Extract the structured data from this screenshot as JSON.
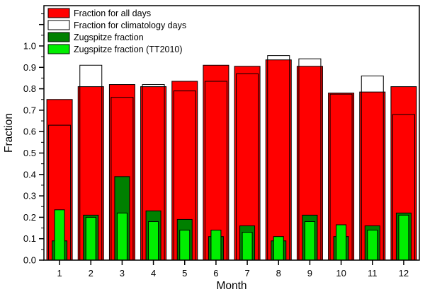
{
  "chart_data": {
    "type": "bar",
    "title": "",
    "xlabel": "Month",
    "ylabel": "Fraction",
    "grid": false,
    "legend_position": "top-left",
    "ylim": [
      0,
      1.19
    ],
    "yticks": [
      0.0,
      0.1,
      0.2,
      0.3,
      0.4,
      0.5,
      0.6,
      0.7,
      0.8,
      0.9,
      1.0,
      1.1
    ],
    "ytick_labels": [
      "0.0",
      "0.1",
      "0.2",
      "0.3",
      "0.4",
      "0.5",
      "0.6",
      "0.7",
      "0.8",
      "0.9",
      "1.0",
      ""
    ],
    "categories": [
      "1",
      "2",
      "3",
      "4",
      "5",
      "6",
      "7",
      "8",
      "9",
      "10",
      "11",
      "12"
    ],
    "series": [
      {
        "key": "all-days",
        "name": "Fraction for all days",
        "color": "#ff0000",
        "fill": true,
        "values": [
          0.75,
          0.81,
          0.82,
          0.81,
          0.835,
          0.91,
          0.905,
          0.935,
          0.905,
          0.78,
          0.785,
          0.81
        ]
      },
      {
        "key": "climatology-days",
        "name": "Fraction for climatology days",
        "color": "#ffffff",
        "fill": false,
        "values": [
          0.63,
          0.91,
          0.76,
          0.82,
          0.79,
          0.835,
          0.87,
          0.955,
          0.94,
          0.775,
          0.86,
          0.68
        ]
      },
      {
        "key": "zugspitze",
        "name": "Zugspitze fraction",
        "color": "#008000",
        "fill": true,
        "values": [
          0.09,
          0.21,
          0.39,
          0.23,
          0.19,
          0.11,
          0.16,
          0.09,
          0.21,
          0.11,
          0.16,
          0.22
        ]
      },
      {
        "key": "zugspitze-tt2010",
        "name": "Zugspitze fraction (TT2010)",
        "color": "#00ee00",
        "fill": true,
        "values": [
          0.235,
          0.2,
          0.22,
          0.18,
          0.14,
          0.14,
          0.13,
          0.11,
          0.18,
          0.165,
          0.14,
          0.21
        ]
      }
    ],
    "bar_edge_color": "#000000"
  }
}
